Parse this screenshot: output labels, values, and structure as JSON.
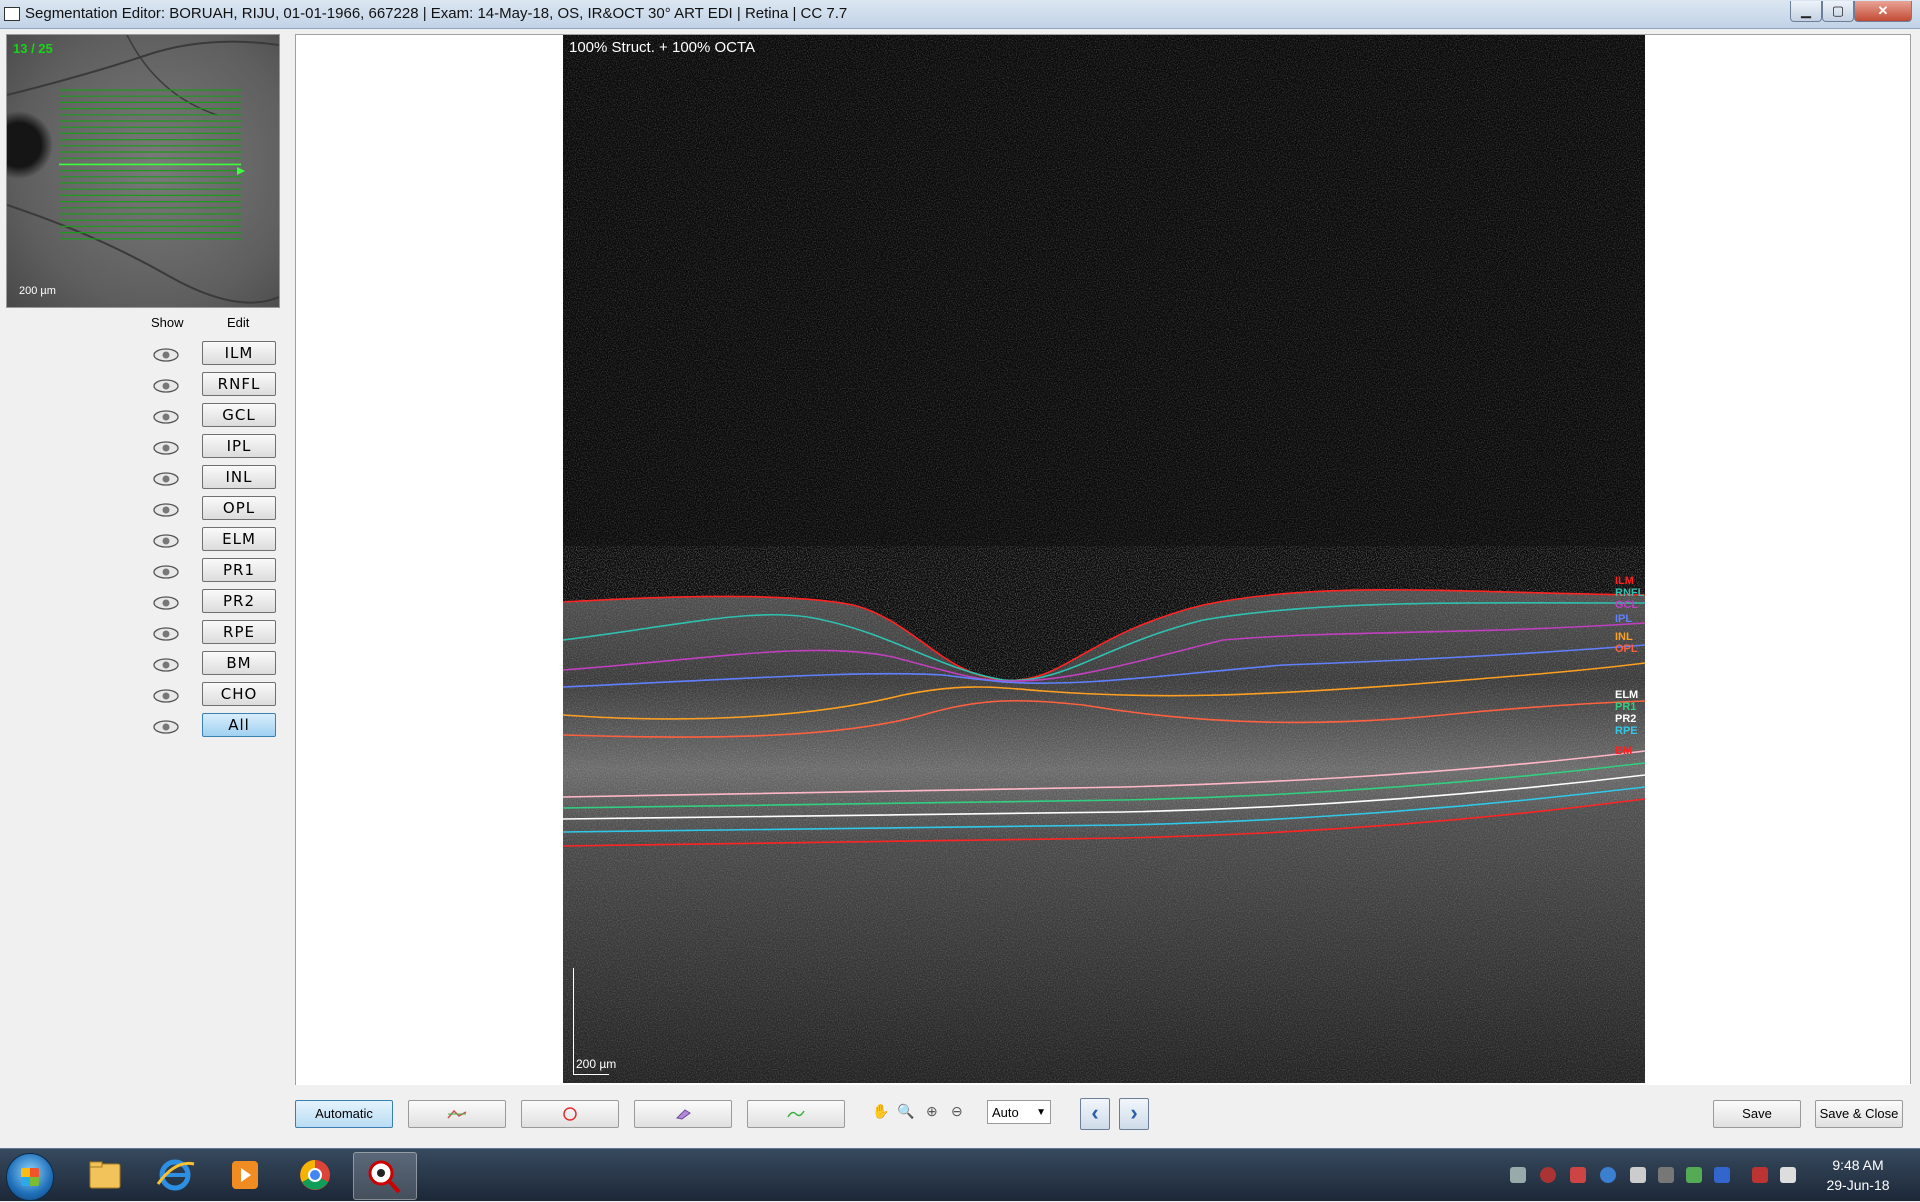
{
  "window": {
    "title": "Segmentation Editor:  BORUAH, RIJU, 01-01-1966, 667228  |  Exam: 14-May-18, OS, IR&OCT 30° ART EDI  |  Retina  |  CC 7.7",
    "min_glyph": "▁",
    "max_glyph": "▢",
    "close_glyph": "✕"
  },
  "fundus": {
    "counter": "13 / 25",
    "scale_label": "200 µm"
  },
  "layers_panel": {
    "show_header": "Show",
    "edit_header": "Edit",
    "rows": [
      {
        "label": "ILM"
      },
      {
        "label": "RNFL"
      },
      {
        "label": "GCL"
      },
      {
        "label": "IPL"
      },
      {
        "label": "INL"
      },
      {
        "label": "OPL"
      },
      {
        "label": "ELM"
      },
      {
        "label": "PR1"
      },
      {
        "label": "PR2"
      },
      {
        "label": "RPE"
      },
      {
        "label": "BM"
      },
      {
        "label": "CHO"
      },
      {
        "label": "All"
      }
    ],
    "selected": "All"
  },
  "oct_view": {
    "overlay_text": "100% Struct. + 100% OCTA",
    "scale_label": "200 µm",
    "boundary_labels": [
      {
        "label": "ILM",
        "color": "#ff2020"
      },
      {
        "label": "RNFL",
        "color": "#30c0b0"
      },
      {
        "label": "GCL",
        "color": "#c040c0"
      },
      {
        "label": "IPL",
        "color": "#6080ff"
      },
      {
        "label": "INL",
        "color": "#ffa020"
      },
      {
        "label": "OPL",
        "color": "#ff6040"
      },
      {
        "label": "ELM",
        "color": "#ffffff"
      },
      {
        "label": "PR1",
        "color": "#30d080"
      },
      {
        "label": "PR2",
        "color": "#ffffff"
      },
      {
        "label": "RPE",
        "color": "#30c8e8"
      },
      {
        "label": "BM",
        "color": "#ff2020"
      }
    ]
  },
  "toolbar": {
    "automatic_label": "Automatic",
    "zoom_select_value": "Auto",
    "prev_glyph": "‹",
    "next_glyph": "›",
    "save_label": "Save",
    "save_close_label": "Save & Close"
  },
  "taskbar": {
    "time": "9:48 AM",
    "date": "29-Jun-18"
  }
}
